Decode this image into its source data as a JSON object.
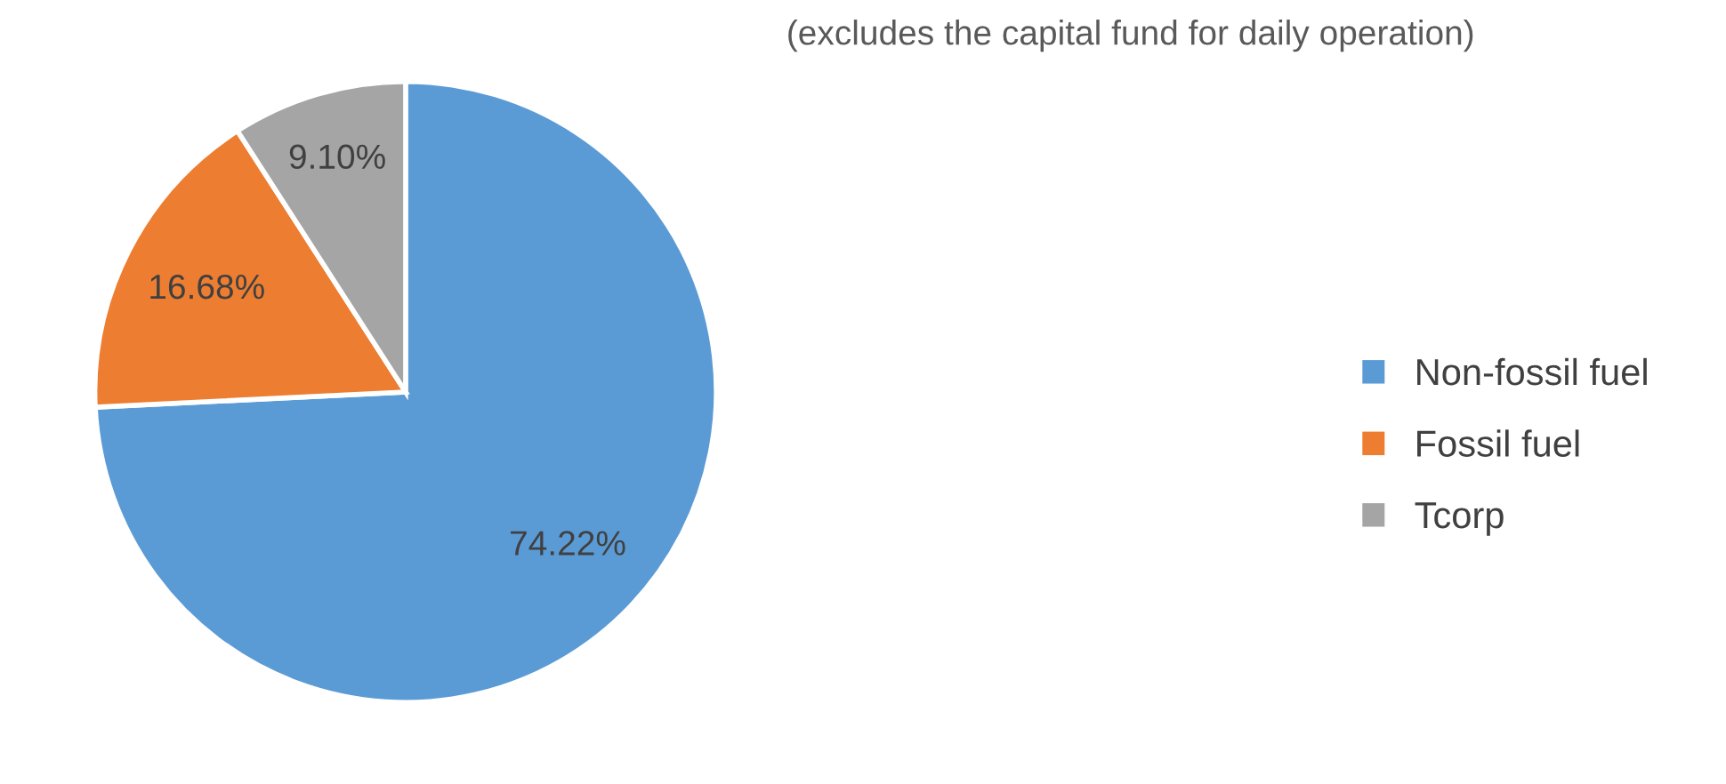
{
  "chart_data": {
    "type": "pie",
    "subtitle": "(excludes the capital fund for daily operation)",
    "categories": [
      "Non-fossil fuel",
      "Fossil fuel",
      "Tcorp"
    ],
    "values": [
      74.22,
      16.68,
      9.1
    ],
    "value_labels": [
      "74.22%",
      "16.68%",
      "9.10%"
    ],
    "colors": [
      "#5b9bd5",
      "#ed7d31",
      "#a5a5a5"
    ],
    "legend": "right"
  }
}
